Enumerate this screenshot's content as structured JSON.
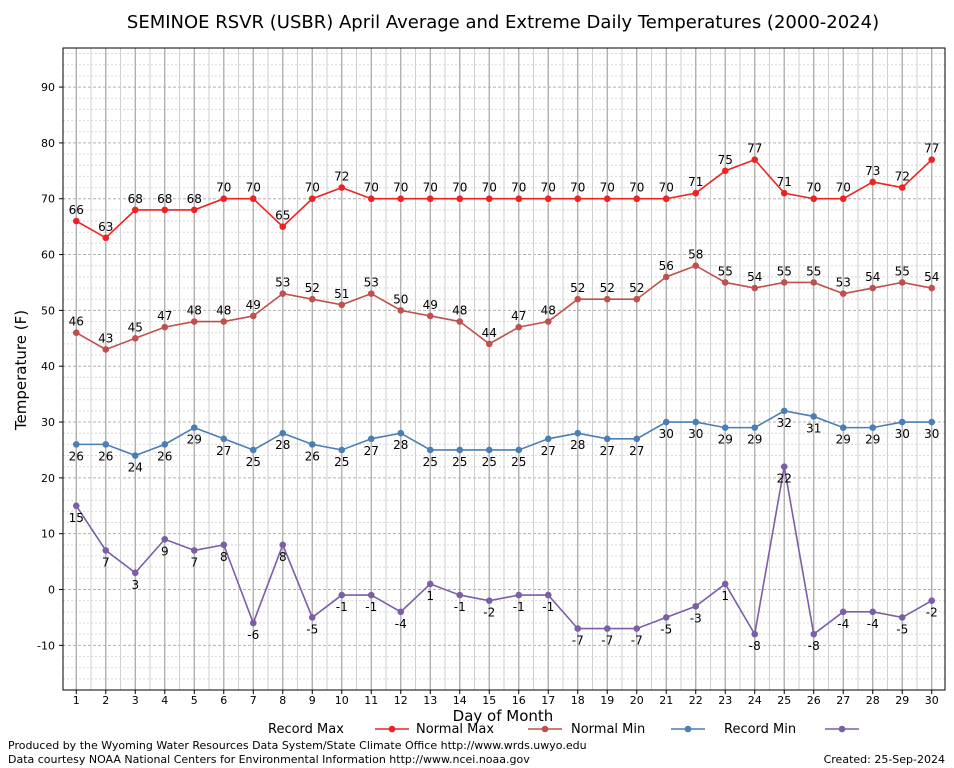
{
  "chart_data": {
    "type": "line",
    "title": "SEMINOE RSVR (USBR) April Average and Extreme Daily Temperatures (2000-2024)",
    "xlabel": "Day of Month",
    "ylabel": "Temperature (F)",
    "xlim": [
      0.55,
      30.45
    ],
    "ylim": [
      -18,
      97
    ],
    "y_ticks": [
      -10,
      0,
      10,
      20,
      30,
      40,
      50,
      60,
      70,
      80,
      90
    ],
    "x": [
      1,
      2,
      3,
      4,
      5,
      6,
      7,
      8,
      9,
      10,
      11,
      12,
      13,
      14,
      15,
      16,
      17,
      18,
      19,
      20,
      21,
      22,
      23,
      24,
      25,
      26,
      27,
      28,
      29,
      30
    ],
    "grid": true,
    "legend_position": "bottom",
    "series": [
      {
        "name": "Record Max",
        "color": "#ee2222",
        "label_position": "above",
        "values": [
          66,
          63,
          68,
          68,
          68,
          70,
          70,
          65,
          70,
          72,
          70,
          70,
          70,
          70,
          70,
          70,
          70,
          70,
          70,
          70,
          70,
          71,
          75,
          77,
          71,
          70,
          70,
          73,
          72,
          77
        ]
      },
      {
        "name": "Normal Max",
        "color": "#c0504d",
        "label_position": "above",
        "values": [
          46,
          43,
          45,
          47,
          48,
          48,
          49,
          53,
          52,
          51,
          53,
          50,
          49,
          48,
          44,
          47,
          48,
          52,
          52,
          52,
          56,
          58,
          55,
          54,
          55,
          55,
          53,
          54,
          55,
          54
        ]
      },
      {
        "name": "Normal Min",
        "color": "#4a7eb5",
        "label_position": "below",
        "values": [
          26,
          26,
          24,
          26,
          29,
          27,
          25,
          28,
          26,
          25,
          27,
          28,
          25,
          25,
          25,
          25,
          27,
          28,
          27,
          27,
          30,
          30,
          29,
          29,
          32,
          31,
          29,
          29,
          30,
          30
        ]
      },
      {
        "name": "Record Min",
        "color": "#7c5ea6",
        "label_position": "below",
        "values": [
          15,
          7,
          3,
          9,
          7,
          8,
          -6,
          8,
          -5,
          -1,
          -1,
          -4,
          1,
          -1,
          -2,
          -1,
          -1,
          -7,
          -7,
          -7,
          -5,
          -3,
          1,
          -8,
          22,
          -8,
          -4,
          -4,
          -5,
          -2
        ]
      }
    ]
  },
  "footer": {
    "produced_by": "Produced by the Wyoming Water Resources Data System/State Climate Office http://www.wrds.uwyo.edu",
    "courtesy": "Data courtesy NOAA National Centers for Environmental Information http://www.ncei.noaa.gov",
    "created": "Created:  25-Sep-2024"
  }
}
